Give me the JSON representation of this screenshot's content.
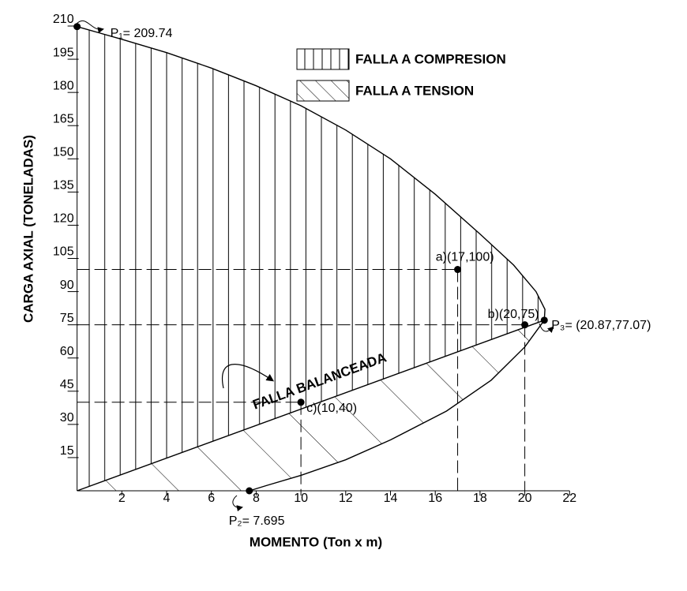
{
  "chart_data": {
    "type": "interaction",
    "xlabel": "MOMENTO (Ton x m)",
    "ylabel": "CARGA AXIAL (TONELADAS)",
    "xlim": [
      0,
      22
    ],
    "ylim": [
      0,
      210
    ],
    "xticks": [
      2,
      4,
      6,
      8,
      10,
      12,
      14,
      16,
      18,
      20,
      22
    ],
    "yticks": [
      15,
      30,
      45,
      60,
      75,
      90,
      105,
      120,
      135,
      150,
      165,
      180,
      195,
      210
    ],
    "color": "#000000",
    "regions": [
      {
        "name": "FALLA A COMPRESION",
        "pattern": "vertical"
      },
      {
        "name": "FALLA A TENSION",
        "pattern": "diagonal"
      }
    ],
    "curves": [
      {
        "x": [
          0,
          2,
          4,
          6,
          8,
          10,
          12,
          14,
          16,
          18,
          19.5,
          20.5,
          20.9,
          20.87
        ],
        "y": [
          209.74,
          204,
          198,
          191,
          183,
          174,
          163,
          150,
          134,
          116,
          102,
          90,
          82,
          77.07
        ]
      },
      {
        "x": [
          20.87,
          20,
          18.5,
          16.5,
          14,
          12,
          10,
          8.5,
          7.695
        ],
        "y": [
          77.07,
          65,
          50,
          36,
          23,
          14,
          7,
          2.5,
          0
        ]
      },
      {
        "x": [
          0,
          20.87
        ],
        "y": [
          0,
          77.07
        ]
      }
    ],
    "points": [
      {
        "label": "P₁= 209.74",
        "x": 0,
        "y": 209.74
      },
      {
        "label": "P₂= 7.695",
        "x": 7.695,
        "y": 0
      },
      {
        "label": "P₃= (20.87,77.07)",
        "x": 20.87,
        "y": 77.07
      },
      {
        "label": "a)(17,100)",
        "x": 17,
        "y": 100
      },
      {
        "label": "b)(20,75)",
        "x": 20,
        "y": 75
      },
      {
        "label": "c)(10,40)",
        "x": 10,
        "y": 40
      }
    ],
    "reference_points": [
      3,
      4,
      5
    ],
    "annotation": "FALLA BALANCEADA"
  }
}
